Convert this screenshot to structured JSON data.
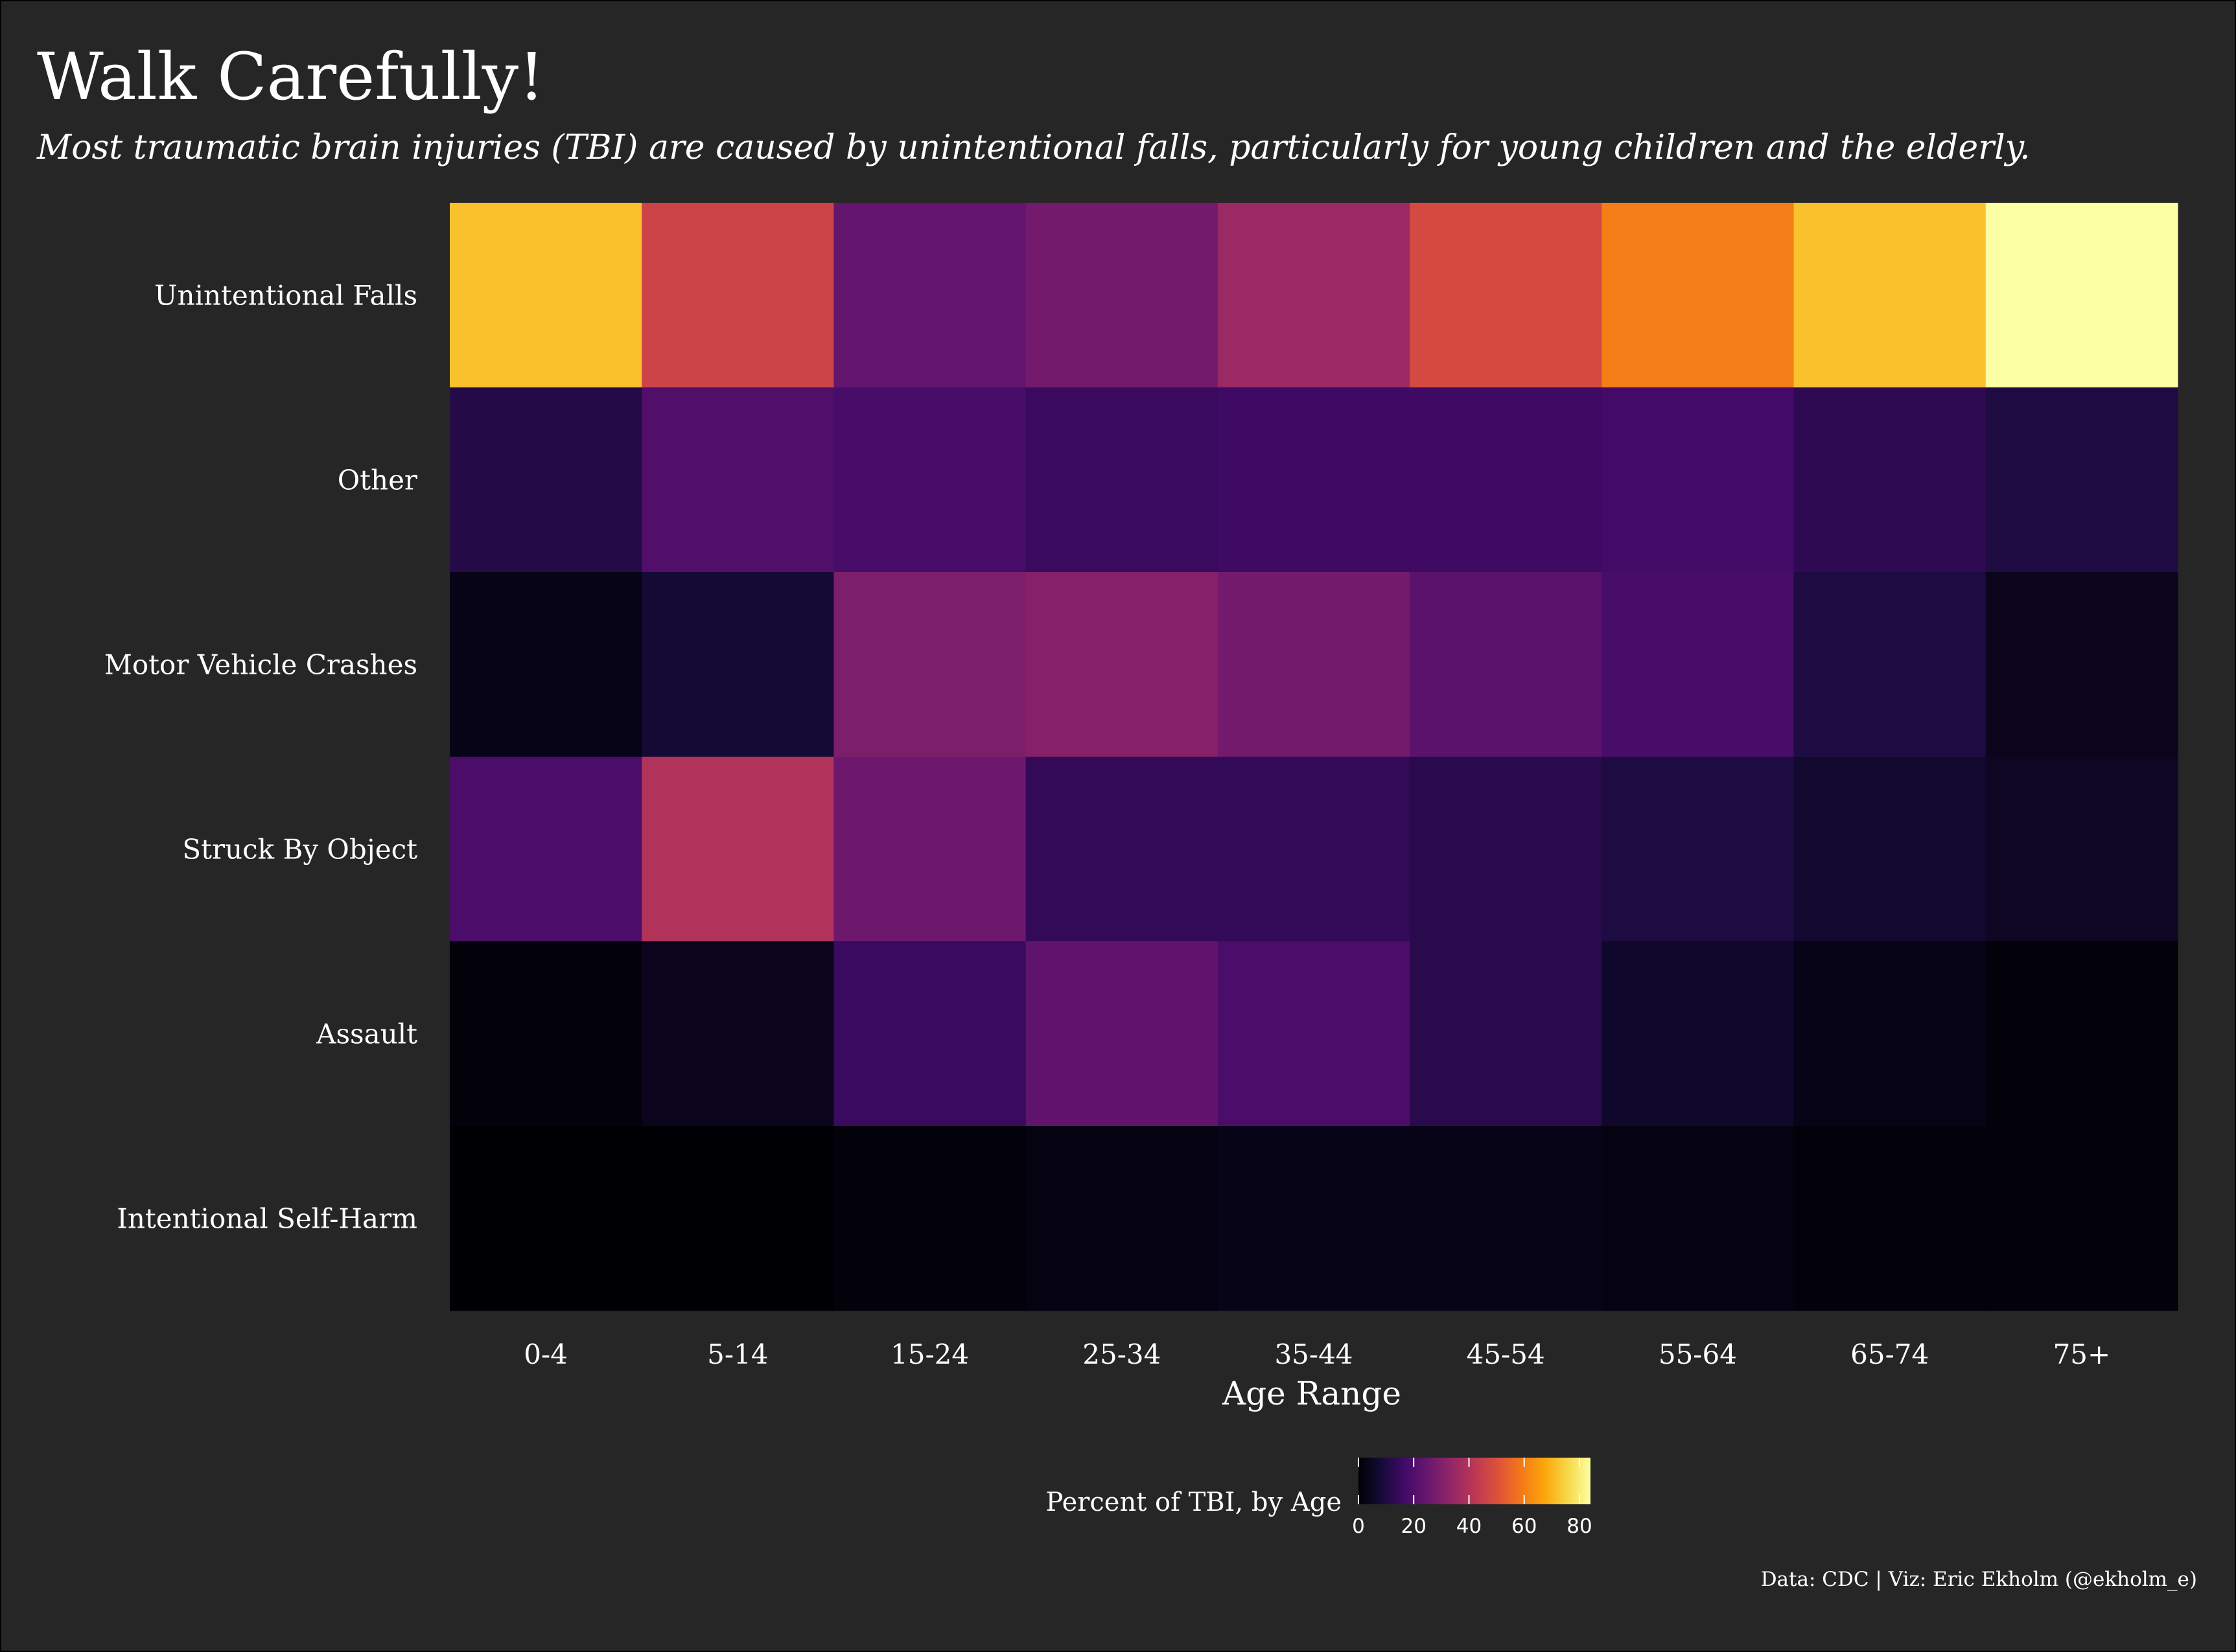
{
  "chart_data": {
    "type": "heatmap",
    "title": "Walk Carefully!",
    "subtitle": "Most traumatic brain injuries (TBI) are caused by unintentional falls, particularly for young children and the elderly.",
    "xlabel": "Age Range",
    "ylabel": "",
    "x": [
      "0-4",
      "5-14",
      "15-24",
      "25-34",
      "35-44",
      "45-54",
      "55-64",
      "65-74",
      "75+"
    ],
    "y": [
      "Unintentional Falls",
      "Other",
      "Motor Vehicle Crashes",
      "Struck By Object",
      "Assault",
      "Intentional Self-Harm"
    ],
    "values": [
      [
        72,
        46,
        24,
        27,
        35,
        48,
        60,
        72,
        84
      ],
      [
        11,
        20,
        18,
        15,
        16,
        16,
        17,
        13,
        10
      ],
      [
        3,
        8,
        29,
        31,
        27,
        22,
        18,
        10,
        4
      ],
      [
        19,
        40,
        26,
        14,
        14,
        12,
        10,
        7,
        5
      ],
      [
        1,
        4,
        15,
        23,
        19,
        12,
        6,
        3,
        1
      ],
      [
        0,
        0,
        1,
        2,
        3,
        3,
        2,
        1,
        1
      ]
    ],
    "colorbar": {
      "label": "Percent of TBI, by Age",
      "ticks": [
        0,
        20,
        40,
        60,
        80
      ],
      "min": 0,
      "max": 84,
      "colormap": "inferno",
      "position": "bottom"
    },
    "caption": "Data: CDC | Viz: Eric Ekholm (@ekholm_e)"
  },
  "colors": {
    "background": "#262626",
    "text": "#ffffff"
  }
}
